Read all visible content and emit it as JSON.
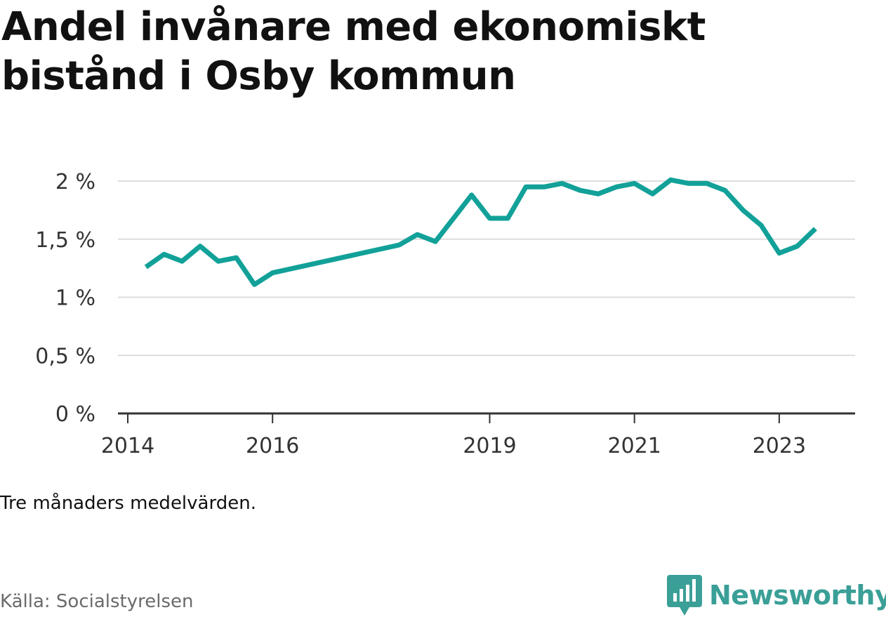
{
  "header": {
    "title": "Andel invånare med ekonomiskt bistånd i Osby kommun"
  },
  "footer": {
    "note": "Tre månaders medelvärden.",
    "source": "Källa: Socialstyrelsen",
    "brand": "Newsworthy"
  },
  "colors": {
    "line": "#12a199",
    "grid": "#dddddd",
    "axis": "#333333",
    "brand": "#3a9f97"
  },
  "chart_data": {
    "type": "line",
    "title": "Andel invånare med ekonomiskt bistånd i Osby kommun",
    "xlabel": "",
    "ylabel": "",
    "ylim": [
      0,
      2
    ],
    "y_ticks": [
      0,
      0.5,
      1,
      1.5,
      2
    ],
    "y_tick_labels": [
      "0 %",
      "0,5 %",
      "1 %",
      "1,5 %",
      "2 %"
    ],
    "x_ticks": [
      2014,
      2016,
      2019,
      2021,
      2023
    ],
    "x_tick_labels": [
      "2014",
      "2016",
      "2019",
      "2021",
      "2023"
    ],
    "xlim": [
      2014,
      2024
    ],
    "grid": true,
    "legend": "none",
    "series": [
      {
        "x": [
          "2014-04",
          "2014-07",
          "2014-10",
          "2015-01",
          "2015-04",
          "2015-07",
          "2015-10",
          "2016-01",
          "2017-10",
          "2018-01",
          "2018-04",
          "2018-07",
          "2018-10",
          "2019-01",
          "2019-04",
          "2019-07",
          "2019-10",
          "2020-01",
          "2020-04",
          "2020-07",
          "2020-10",
          "2021-01",
          "2021-04",
          "2021-07",
          "2021-10",
          "2022-01",
          "2022-04",
          "2022-07",
          "2022-10",
          "2023-01",
          "2023-04",
          "2023-07"
        ],
        "values": [
          1.26,
          1.37,
          1.31,
          1.44,
          1.31,
          1.34,
          1.11,
          1.21,
          1.45,
          1.54,
          1.48,
          1.68,
          1.88,
          1.68,
          1.68,
          1.95,
          1.95,
          1.98,
          1.92,
          1.89,
          1.95,
          1.98,
          1.89,
          2.01,
          1.98,
          1.98,
          1.92,
          1.75,
          1.62,
          1.38,
          1.44,
          1.59
        ]
      }
    ]
  }
}
